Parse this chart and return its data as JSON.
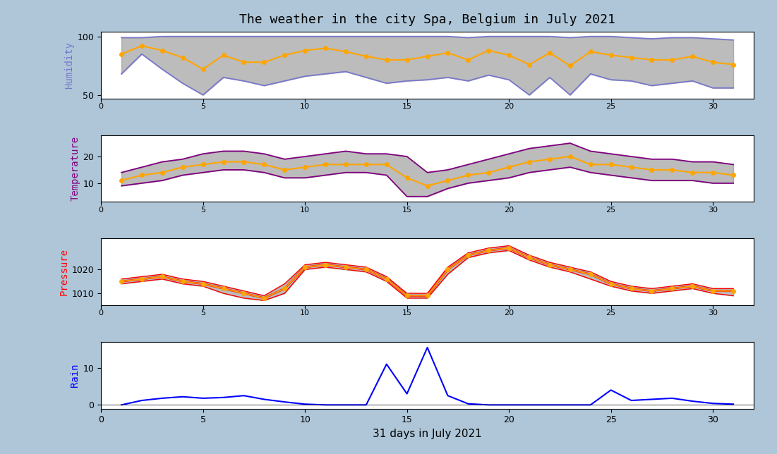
{
  "title": "The weather in the city Spa, Belgium in July 2021",
  "xlabel": "31 days in July 2021",
  "fig_facecolor": "#aec6d8",
  "days": [
    1,
    2,
    3,
    4,
    5,
    6,
    7,
    8,
    9,
    10,
    11,
    12,
    13,
    14,
    15,
    16,
    17,
    18,
    19,
    20,
    21,
    22,
    23,
    24,
    25,
    26,
    27,
    28,
    29,
    30,
    31
  ],
  "humidity_max": [
    99,
    99,
    100,
    100,
    100,
    100,
    100,
    100,
    100,
    100,
    100,
    100,
    100,
    100,
    100,
    100,
    100,
    99,
    100,
    100,
    100,
    100,
    99,
    100,
    100,
    99,
    98,
    99,
    99,
    98,
    97
  ],
  "humidity_min": [
    68,
    85,
    72,
    60,
    50,
    65,
    62,
    58,
    62,
    66,
    68,
    70,
    65,
    60,
    62,
    63,
    65,
    62,
    67,
    63,
    50,
    65,
    50,
    68,
    63,
    62,
    58,
    60,
    62,
    56,
    56
  ],
  "humidity_mean": [
    85,
    92,
    88,
    82,
    72,
    84,
    78,
    78,
    84,
    88,
    90,
    87,
    83,
    80,
    80,
    83,
    86,
    80,
    88,
    84,
    76,
    86,
    75,
    87,
    84,
    82,
    80,
    80,
    83,
    78,
    76
  ],
  "temp_max": [
    14,
    16,
    18,
    19,
    21,
    22,
    22,
    21,
    19,
    20,
    21,
    22,
    21,
    21,
    20,
    14,
    15,
    17,
    19,
    21,
    23,
    24,
    25,
    22,
    21,
    20,
    19,
    19,
    18,
    18,
    17
  ],
  "temp_min": [
    9,
    10,
    11,
    13,
    14,
    15,
    15,
    14,
    12,
    12,
    13,
    14,
    14,
    13,
    5,
    5,
    8,
    10,
    11,
    12,
    14,
    15,
    16,
    14,
    13,
    12,
    11,
    11,
    11,
    10,
    10
  ],
  "temp_mean": [
    11,
    13,
    14,
    16,
    17,
    18,
    18,
    17,
    15,
    16,
    17,
    17,
    17,
    17,
    12,
    9,
    11,
    13,
    14,
    16,
    18,
    19,
    20,
    17,
    17,
    16,
    15,
    15,
    14,
    14,
    13
  ],
  "pressure_vals": [
    1015,
    1016,
    1017,
    1015,
    1014,
    1012,
    1010,
    1008,
    1012,
    1021,
    1022,
    1021,
    1020,
    1016,
    1009,
    1009,
    1020,
    1026,
    1028,
    1029,
    1025,
    1022,
    1020,
    1018,
    1014,
    1012,
    1011,
    1012,
    1013,
    1011,
    1011
  ],
  "pressure_min": [
    1014,
    1015,
    1016,
    1014,
    1013,
    1010,
    1008,
    1007,
    1010,
    1020,
    1021,
    1020,
    1019,
    1015,
    1008,
    1008,
    1018,
    1025,
    1027,
    1028,
    1024,
    1021,
    1019,
    1016,
    1013,
    1011,
    1010,
    1011,
    1012,
    1010,
    1009
  ],
  "pressure_max": [
    1016,
    1017,
    1018,
    1016,
    1015,
    1013,
    1011,
    1009,
    1014,
    1022,
    1023,
    1022,
    1021,
    1017,
    1010,
    1010,
    1021,
    1027,
    1029,
    1030,
    1026,
    1023,
    1021,
    1019,
    1015,
    1013,
    1012,
    1013,
    1014,
    1012,
    1012
  ],
  "rain": [
    0.0,
    1.2,
    1.8,
    2.2,
    1.8,
    2.0,
    2.5,
    1.5,
    0.8,
    0.2,
    0.0,
    0.0,
    0.0,
    11.0,
    3.0,
    15.5,
    2.5,
    0.3,
    0.0,
    0.0,
    0.0,
    0.0,
    0.0,
    0.0,
    4.0,
    1.2,
    1.5,
    1.8,
    1.0,
    0.4,
    0.2
  ],
  "hum_line_color": "#7878cc",
  "hum_dot_color": "orange",
  "hum_fill_color": "#909090",
  "temp_line_color": "#800080",
  "temp_dot_color": "orange",
  "temp_fill_color": "#909090",
  "pres_line_color": "red",
  "pres_dot_color": "orange",
  "pres_fill_color": "#909090",
  "rain_color": "blue",
  "ylabel_humidity": "Humidity",
  "ylabel_humidity_color": "#7878cc",
  "ylabel_temp": "Temperature",
  "ylabel_temp_color": "#800080",
  "ylabel_pressure": "Pressure",
  "ylabel_pressure_color": "red",
  "ylabel_rain": "Rain",
  "ylabel_rain_color": "blue",
  "xtick_between": [
    0,
    5,
    10,
    15,
    20,
    25,
    30
  ],
  "xtick_bottom": [
    0,
    5,
    10,
    15,
    20,
    25,
    30
  ]
}
